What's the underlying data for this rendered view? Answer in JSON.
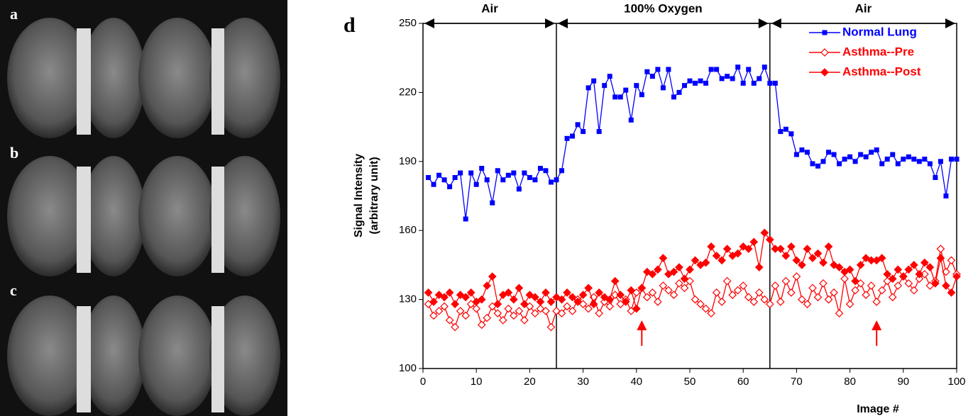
{
  "panels": {
    "labels": [
      "a",
      "b",
      "c"
    ]
  },
  "chart_data": {
    "type": "line",
    "panel_label": "d",
    "xlabel": "Image #",
    "ylabel": [
      "Signal Intensity",
      "(arbitrary unit)"
    ],
    "xlim": [
      0,
      100
    ],
    "xticks": [
      0,
      10,
      20,
      30,
      40,
      50,
      60,
      70,
      80,
      90,
      100
    ],
    "ylim": [
      100,
      250
    ],
    "yticks": [
      100,
      130,
      160,
      190,
      220,
      250
    ],
    "legend": "upper right",
    "regions": [
      {
        "label": "Air",
        "start": 0,
        "end": 25
      },
      {
        "label": "100%  Oxygen",
        "start": 25,
        "end": 65
      },
      {
        "label": "Air",
        "start": 65,
        "end": 100
      }
    ],
    "arrows": [
      41,
      85
    ],
    "x": [
      1,
      2,
      3,
      4,
      5,
      6,
      7,
      8,
      9,
      10,
      11,
      12,
      13,
      14,
      15,
      16,
      17,
      18,
      19,
      20,
      21,
      22,
      23,
      24,
      25,
      26,
      27,
      28,
      29,
      30,
      31,
      32,
      33,
      34,
      35,
      36,
      37,
      38,
      39,
      40,
      41,
      42,
      43,
      44,
      45,
      46,
      47,
      48,
      49,
      50,
      51,
      52,
      53,
      54,
      55,
      56,
      57,
      58,
      59,
      60,
      61,
      62,
      63,
      64,
      65,
      66,
      67,
      68,
      69,
      70,
      71,
      72,
      73,
      74,
      75,
      76,
      77,
      78,
      79,
      80,
      81,
      82,
      83,
      84,
      85,
      86,
      87,
      88,
      89,
      90,
      91,
      92,
      93,
      94,
      95,
      96,
      97,
      98,
      99,
      100
    ],
    "series": [
      {
        "name": "Normal Lung",
        "color": "#0000ff",
        "marker": "square",
        "values": [
          183,
          180,
          184,
          182,
          179,
          183,
          185,
          165,
          185,
          180,
          187,
          182,
          172,
          186,
          182,
          184,
          185,
          178,
          185,
          183,
          182,
          187,
          186,
          181,
          182,
          186,
          200,
          201,
          206,
          203,
          222,
          225,
          203,
          223,
          227,
          218,
          218,
          221,
          208,
          223,
          219,
          229,
          227,
          230,
          222,
          230,
          218,
          220,
          223,
          225,
          224,
          225,
          224,
          230,
          230,
          226,
          227,
          226,
          231,
          224,
          230,
          224,
          226,
          231,
          224,
          224,
          203,
          204,
          202,
          193,
          195,
          194,
          189,
          188,
          190,
          194,
          193,
          189,
          191,
          192,
          190,
          193,
          192,
          194,
          195,
          189,
          191,
          193,
          189,
          191,
          192,
          191,
          190,
          191,
          189,
          183,
          190,
          175,
          191,
          191
        ]
      },
      {
        "name": "Asthma--Pre",
        "color": "#ff0000",
        "marker": "open-diamond",
        "values": [
          128,
          123,
          125,
          127,
          121,
          118,
          125,
          123,
          128,
          126,
          119,
          122,
          127,
          124,
          121,
          126,
          123,
          125,
          121,
          127,
          124,
          126,
          125,
          118,
          125,
          124,
          127,
          125,
          130,
          128,
          126,
          131,
          124,
          129,
          127,
          132,
          128,
          130,
          125,
          133,
          135,
          131,
          133,
          129,
          136,
          134,
          132,
          137,
          135,
          138,
          130,
          128,
          126,
          124,
          133,
          129,
          138,
          132,
          134,
          136,
          131,
          129,
          133,
          130,
          128,
          136,
          129,
          138,
          133,
          140,
          130,
          128,
          135,
          131,
          137,
          130,
          133,
          124,
          139,
          128,
          134,
          137,
          132,
          136,
          129,
          134,
          138,
          131,
          136,
          140,
          137,
          134,
          139,
          141,
          136,
          138,
          152,
          142,
          147,
          141
        ]
      },
      {
        "name": "Asthma--Post",
        "color": "#ff0000",
        "marker": "diamond",
        "values": [
          133,
          129,
          132,
          131,
          133,
          128,
          132,
          131,
          133,
          129,
          130,
          136,
          140,
          128,
          132,
          133,
          130,
          135,
          128,
          132,
          131,
          129,
          133,
          129,
          131,
          130,
          133,
          131,
          129,
          132,
          135,
          128,
          133,
          131,
          130,
          138,
          132,
          129,
          134,
          126,
          135,
          142,
          141,
          143,
          148,
          141,
          142,
          144,
          139,
          143,
          147,
          145,
          146,
          153,
          149,
          147,
          152,
          149,
          150,
          153,
          152,
          155,
          144,
          159,
          156,
          152,
          152,
          149,
          153,
          147,
          145,
          152,
          148,
          150,
          146,
          153,
          145,
          144,
          142,
          143,
          138,
          145,
          148,
          147,
          147,
          148,
          141,
          139,
          143,
          140,
          143,
          145,
          141,
          146,
          144,
          137,
          148,
          136,
          133,
          140
        ]
      }
    ]
  }
}
